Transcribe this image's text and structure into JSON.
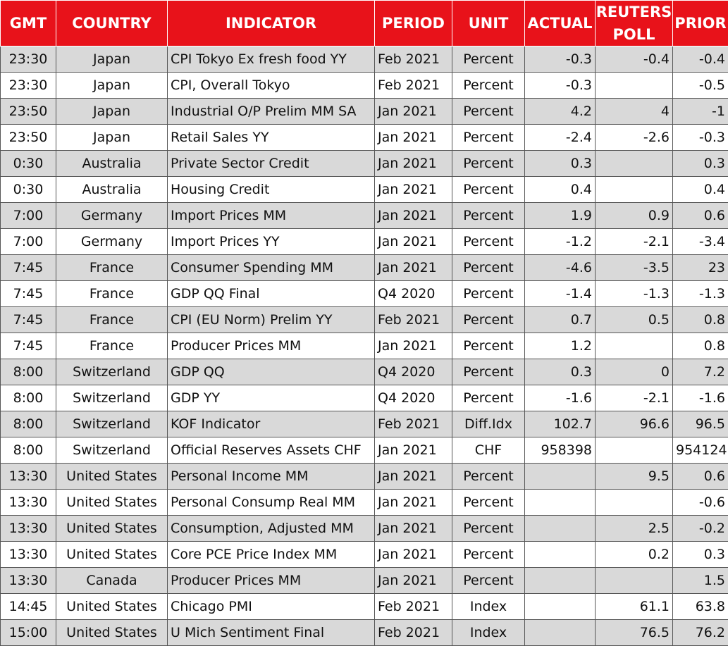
{
  "columns": {
    "gmt": "GMT",
    "country": "COUNTRY",
    "indicator": "INDICATOR",
    "period": "PERIOD",
    "unit": "UNIT",
    "actual": "ACTUAL",
    "reuters_poll_line1": "REUTERS",
    "reuters_poll_line2": "POLL",
    "prior": "PRIOR"
  },
  "rows": [
    {
      "gmt": "23:30",
      "country": "Japan",
      "indicator": "CPI Tokyo Ex fresh food YY",
      "period": "Feb 2021",
      "unit": "Percent",
      "actual": "-0.3",
      "poll": "-0.4",
      "prior": "-0.4"
    },
    {
      "gmt": "23:30",
      "country": "Japan",
      "indicator": "CPI, Overall Tokyo",
      "period": "Feb 2021",
      "unit": "Percent",
      "actual": "-0.3",
      "poll": "",
      "prior": "-0.5"
    },
    {
      "gmt": "23:50",
      "country": "Japan",
      "indicator": "Industrial O/P Prelim MM SA",
      "period": "Jan 2021",
      "unit": "Percent",
      "actual": "4.2",
      "poll": "4",
      "prior": "-1"
    },
    {
      "gmt": "23:50",
      "country": "Japan",
      "indicator": "Retail Sales YY",
      "period": "Jan 2021",
      "unit": "Percent",
      "actual": "-2.4",
      "poll": "-2.6",
      "prior": "-0.3"
    },
    {
      "gmt": "0:30",
      "country": "Australia",
      "indicator": "Private Sector Credit",
      "period": "Jan 2021",
      "unit": "Percent",
      "actual": "0.3",
      "poll": "",
      "prior": "0.3"
    },
    {
      "gmt": "0:30",
      "country": "Australia",
      "indicator": "Housing Credit",
      "period": "Jan 2021",
      "unit": "Percent",
      "actual": "0.4",
      "poll": "",
      "prior": "0.4"
    },
    {
      "gmt": "7:00",
      "country": "Germany",
      "indicator": "Import Prices MM",
      "period": "Jan 2021",
      "unit": "Percent",
      "actual": "1.9",
      "poll": "0.9",
      "prior": "0.6"
    },
    {
      "gmt": "7:00",
      "country": "Germany",
      "indicator": "Import Prices YY",
      "period": "Jan 2021",
      "unit": "Percent",
      "actual": "-1.2",
      "poll": "-2.1",
      "prior": "-3.4"
    },
    {
      "gmt": "7:45",
      "country": "France",
      "indicator": "Consumer Spending MM",
      "period": "Jan 2021",
      "unit": "Percent",
      "actual": "-4.6",
      "poll": "-3.5",
      "prior": "23"
    },
    {
      "gmt": "7:45",
      "country": "France",
      "indicator": "GDP QQ Final",
      "period": "Q4 2020",
      "unit": "Percent",
      "actual": "-1.4",
      "poll": "-1.3",
      "prior": "-1.3"
    },
    {
      "gmt": "7:45",
      "country": "France",
      "indicator": "CPI (EU Norm) Prelim YY",
      "period": "Feb 2021",
      "unit": "Percent",
      "actual": "0.7",
      "poll": "0.5",
      "prior": "0.8"
    },
    {
      "gmt": "7:45",
      "country": "France",
      "indicator": "Producer Prices MM",
      "period": "Jan 2021",
      "unit": "Percent",
      "actual": "1.2",
      "poll": "",
      "prior": "0.8"
    },
    {
      "gmt": "8:00",
      "country": "Switzerland",
      "indicator": "GDP QQ",
      "period": "Q4 2020",
      "unit": "Percent",
      "actual": "0.3",
      "poll": "0",
      "prior": "7.2"
    },
    {
      "gmt": "8:00",
      "country": "Switzerland",
      "indicator": "GDP YY",
      "period": "Q4 2020",
      "unit": "Percent",
      "actual": "-1.6",
      "poll": "-2.1",
      "prior": "-1.6"
    },
    {
      "gmt": "8:00",
      "country": "Switzerland",
      "indicator": "KOF Indicator",
      "period": "Feb 2021",
      "unit": "Diff.Idx",
      "actual": "102.7",
      "poll": "96.6",
      "prior": "96.5"
    },
    {
      "gmt": "8:00",
      "country": "Switzerland",
      "indicator": "Official Reserves Assets CHF",
      "period": "Jan 2021",
      "unit": "CHF",
      "actual": "958398",
      "poll": "",
      "prior": "954124"
    },
    {
      "gmt": "13:30",
      "country": "United States",
      "indicator": "Personal Income MM",
      "period": "Jan 2021",
      "unit": "Percent",
      "actual": "",
      "poll": "9.5",
      "prior": "0.6"
    },
    {
      "gmt": "13:30",
      "country": "United States",
      "indicator": "Personal Consump Real MM",
      "period": "Jan 2021",
      "unit": "Percent",
      "actual": "",
      "poll": "",
      "prior": "-0.6"
    },
    {
      "gmt": "13:30",
      "country": "United States",
      "indicator": "Consumption, Adjusted MM",
      "period": "Jan 2021",
      "unit": "Percent",
      "actual": "",
      "poll": "2.5",
      "prior": "-0.2"
    },
    {
      "gmt": "13:30",
      "country": "United States",
      "indicator": "Core PCE Price Index MM",
      "period": "Jan 2021",
      "unit": "Percent",
      "actual": "",
      "poll": "0.2",
      "prior": "0.3"
    },
    {
      "gmt": "13:30",
      "country": "Canada",
      "indicator": "Producer Prices MM",
      "period": "Jan 2021",
      "unit": "Percent",
      "actual": "",
      "poll": "",
      "prior": "1.5"
    },
    {
      "gmt": "14:45",
      "country": "United States",
      "indicator": "Chicago PMI",
      "period": "Feb 2021",
      "unit": "Index",
      "actual": "",
      "poll": "61.1",
      "prior": "63.8"
    },
    {
      "gmt": "15:00",
      "country": "United States",
      "indicator": "U Mich Sentiment Final",
      "period": "Feb 2021",
      "unit": "Index",
      "actual": "",
      "poll": "76.5",
      "prior": "76.2"
    }
  ],
  "colors": {
    "header_bg": "#e8121a",
    "header_text": "#ffffff",
    "shaded_row": "#d9d9d9",
    "plain_row": "#ffffff"
  }
}
